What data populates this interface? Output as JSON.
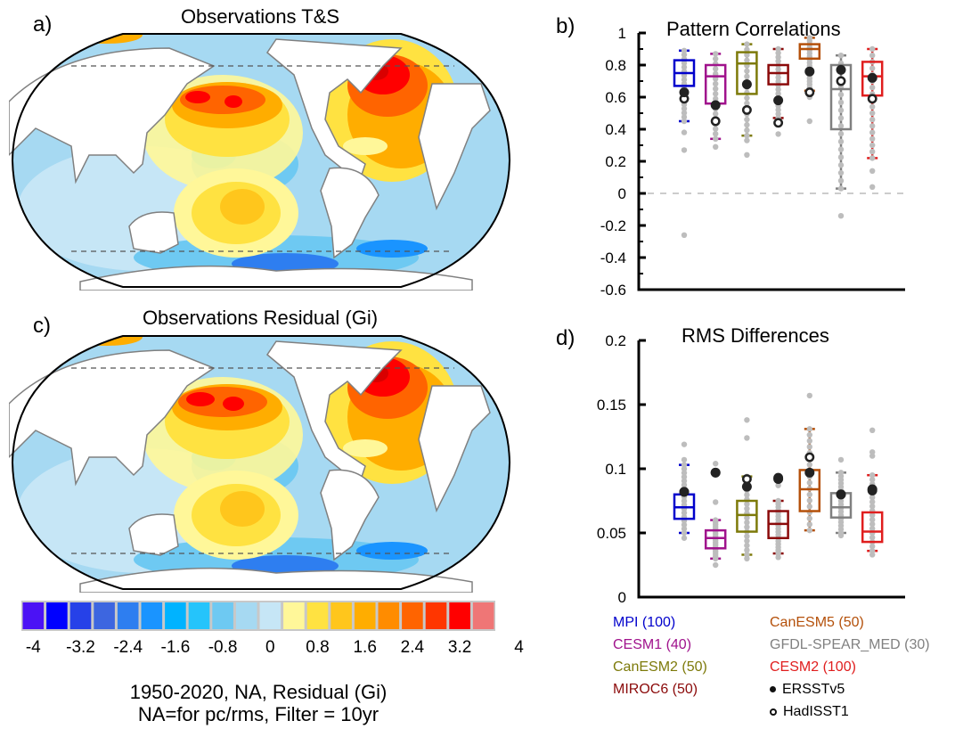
{
  "panels": {
    "a": {
      "label": "a)",
      "title": "Observations T&S"
    },
    "b": {
      "label": "b)",
      "title": "Pattern Correlations"
    },
    "c": {
      "label": "c)",
      "title": "Observations Residual (Gi)"
    },
    "d": {
      "label": "d)",
      "title": "RMS Differences"
    }
  },
  "colorbar": {
    "colors": [
      "#4b12f5",
      "#0000ff",
      "#2641e8",
      "#3d66e0",
      "#2e7ef0",
      "#1a94ff",
      "#00b3ff",
      "#25c4fb",
      "#6ec9f2",
      "#a6d9f2",
      "#c6e6f6",
      "#fff799",
      "#ffe241",
      "#ffc61c",
      "#ffad00",
      "#ff8c00",
      "#ff6400",
      "#ff3600",
      "#ff0000",
      "#d90000",
      "#cf1e1e",
      "#ef7676"
    ],
    "tick_labels": [
      "-4",
      "-3.2",
      "-2.4",
      "-1.6",
      "-0.8",
      "0",
      "0.8",
      "1.6",
      "2.4",
      "3.2",
      "4"
    ]
  },
  "caption": {
    "line1": "1950-2020, NA, Residual (Gi)",
    "line2": "NA=for pc/rms, Filter = 10yr"
  },
  "legend": {
    "models": [
      {
        "name": "MPI (100)",
        "color": "#0000cc"
      },
      {
        "name": "CESM1 (40)",
        "color": "#a0128c"
      },
      {
        "name": "CanESM2 (50)",
        "color": "#7d7a0a"
      },
      {
        "name": "MIROC6 (50)",
        "color": "#8b0a0a"
      },
      {
        "name": "CanESM5 (50)",
        "color": "#b4500a"
      },
      {
        "name": "GFDL-SPEAR_MED (30)",
        "color": "#808080"
      },
      {
        "name": "CESM2 (100)",
        "color": "#e01e1e"
      }
    ],
    "obs": [
      {
        "name": "ERSSTv5",
        "marker": "filled-circle"
      },
      {
        "name": "HadISST1",
        "marker": "open-circle"
      }
    ]
  },
  "chart_data": [
    {
      "panel": "b",
      "type": "box",
      "title": "Pattern Correlations",
      "ylim": [
        -0.6,
        1.0
      ],
      "yticks": [
        1,
        0.8,
        0.6,
        0.4,
        0.2,
        0,
        -0.2,
        -0.4,
        -0.6
      ],
      "ytick_labels": [
        "1",
        "0.8",
        "0.6",
        "0.4",
        "0.2",
        "0",
        "-0.2",
        "-0.4",
        "-0.6"
      ],
      "reference_line": 0,
      "series": [
        {
          "name": "MPI",
          "q1": 0.67,
          "median": 0.75,
          "q3": 0.83,
          "whisker_low": 0.45,
          "whisker_high": 0.89,
          "outliers": [
            0.38,
            0.27,
            -0.26
          ],
          "ERSSTv5": 0.63,
          "HadISST1": 0.59
        },
        {
          "name": "CESM1",
          "q1": 0.56,
          "median": 0.73,
          "q3": 0.8,
          "whisker_low": 0.34,
          "whisker_high": 0.87,
          "outliers": [
            0.29
          ],
          "ERSSTv5": 0.55,
          "HadISST1": 0.45
        },
        {
          "name": "CanESM2",
          "q1": 0.62,
          "median": 0.81,
          "q3": 0.88,
          "whisker_low": 0.36,
          "whisker_high": 0.93,
          "outliers": [
            0.33,
            0.24
          ],
          "ERSSTv5": 0.68,
          "HadISST1": 0.52
        },
        {
          "name": "MIROC6",
          "q1": 0.68,
          "median": 0.75,
          "q3": 0.8,
          "whisker_low": 0.47,
          "whisker_high": 0.9,
          "outliers": [
            0.37
          ],
          "ERSSTv5": 0.58,
          "HadISST1": 0.44
        },
        {
          "name": "CanESM5",
          "q1": 0.84,
          "median": 0.9,
          "q3": 0.93,
          "whisker_low": 0.64,
          "whisker_high": 0.97,
          "outliers": [
            0.6,
            0.45
          ],
          "ERSSTv5": 0.76,
          "HadISST1": 0.63
        },
        {
          "name": "GFDL-SPEAR_MED",
          "q1": 0.4,
          "median": 0.65,
          "q3": 0.8,
          "whisker_low": 0.03,
          "whisker_high": 0.86,
          "outliers": [
            -0.14
          ],
          "ERSSTv5": 0.77,
          "HadISST1": 0.7
        },
        {
          "name": "CESM2",
          "q1": 0.61,
          "median": 0.73,
          "q3": 0.82,
          "whisker_low": 0.22,
          "whisker_high": 0.9,
          "outliers": [
            0.14,
            0.04
          ],
          "ERSSTv5": 0.72,
          "HadISST1": 0.59
        }
      ]
    },
    {
      "panel": "d",
      "type": "box",
      "title": "RMS Differences",
      "ylim": [
        0,
        0.2
      ],
      "yticks": [
        0.2,
        0.15,
        0.1,
        0.05,
        0
      ],
      "ytick_labels": [
        "0.2",
        "0.15",
        "0.1",
        "0.05",
        "0"
      ],
      "series": [
        {
          "name": "MPI",
          "q1": 0.061,
          "median": 0.07,
          "q3": 0.08,
          "whisker_low": 0.05,
          "whisker_high": 0.103,
          "outliers": [
            0.119,
            0.107,
            0.046
          ],
          "ERSSTv5": 0.082,
          "HadISST1": 0.082
        },
        {
          "name": "CESM1",
          "q1": 0.038,
          "median": 0.046,
          "q3": 0.052,
          "whisker_low": 0.03,
          "whisker_high": 0.06,
          "outliers": [
            0.104,
            0.074,
            0.025
          ],
          "ERSSTv5": 0.097,
          "HadISST1": 0.097
        },
        {
          "name": "CanESM2",
          "q1": 0.051,
          "median": 0.064,
          "q3": 0.075,
          "whisker_low": 0.033,
          "whisker_high": 0.094,
          "outliers": [
            0.138,
            0.124,
            0.03
          ],
          "ERSSTv5": 0.086,
          "HadISST1": 0.092
        },
        {
          "name": "MIROC6",
          "q1": 0.046,
          "median": 0.057,
          "q3": 0.067,
          "whisker_low": 0.034,
          "whisker_high": 0.075,
          "outliers": [
            0.087,
            0.031
          ],
          "ERSSTv5": 0.092,
          "HadISST1": 0.093
        },
        {
          "name": "CanESM5",
          "q1": 0.067,
          "median": 0.084,
          "q3": 0.099,
          "whisker_low": 0.052,
          "whisker_high": 0.131,
          "outliers": [
            0.157
          ],
          "ERSSTv5": 0.097,
          "HadISST1": 0.109
        },
        {
          "name": "GFDL-SPEAR_MED",
          "q1": 0.062,
          "median": 0.07,
          "q3": 0.081,
          "whisker_low": 0.05,
          "whisker_high": 0.097,
          "outliers": [
            0.107,
            0.048
          ],
          "ERSSTv5": 0.08,
          "HadISST1": 0.08
        },
        {
          "name": "CESM2",
          "q1": 0.043,
          "median": 0.051,
          "q3": 0.066,
          "whisker_low": 0.036,
          "whisker_high": 0.095,
          "outliers": [
            0.13,
            0.113,
            0.11,
            0.033
          ],
          "ERSSTv5": 0.084,
          "HadISST1": 0.083
        }
      ]
    }
  ]
}
